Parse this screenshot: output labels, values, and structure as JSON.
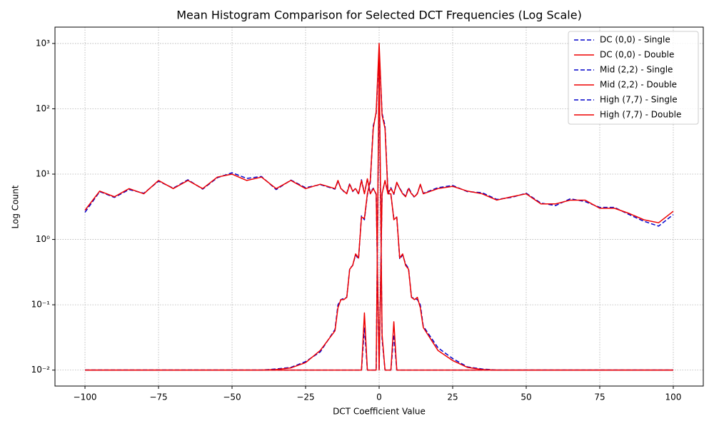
{
  "chart_data": {
    "type": "line",
    "title": "Mean Histogram Comparison for Selected DCT Frequencies (Log Scale)",
    "x_label": "DCT Coefficient Value",
    "y_label": "Log Count",
    "y_scale": "log",
    "grid": true,
    "legend": "upper right",
    "x": [
      -100,
      -95,
      -90,
      -85,
      -80,
      -75,
      -70,
      -65,
      -60,
      -55,
      -50,
      -45,
      -40,
      -35,
      -30,
      -25,
      -20,
      -15,
      -14,
      -13,
      -12,
      -11,
      -10,
      -9,
      -8,
      -7,
      -6,
      -5,
      -4,
      -3,
      -2,
      -1,
      0,
      1,
      2,
      3,
      4,
      5,
      6,
      7,
      8,
      9,
      10,
      11,
      12,
      13,
      14,
      15,
      20,
      25,
      30,
      35,
      40,
      45,
      50,
      55,
      60,
      65,
      70,
      75,
      80,
      85,
      90,
      95,
      100
    ],
    "xlim": [
      -110.2,
      110.2
    ],
    "xticks": [
      {
        "value": -100,
        "label": "−100"
      },
      {
        "value": -75,
        "label": "−75"
      },
      {
        "value": -50,
        "label": "−50"
      },
      {
        "value": -25,
        "label": "−25"
      },
      0,
      25,
      50,
      75,
      100
    ],
    "ylim": [
      0.0057,
      1780
    ],
    "yticks": [
      {
        "value": 0.01,
        "label": "10⁻²"
      },
      {
        "value": 0.1,
        "label": "10⁻¹"
      },
      {
        "value": 1,
        "label": "10⁰"
      },
      {
        "value": 10,
        "label": "10¹"
      },
      {
        "value": 100,
        "label": "10²"
      },
      {
        "value": 1000,
        "label": "10³"
      }
    ],
    "series": [
      {
        "name": "DC (0,0) - Single",
        "color": "#0000cc",
        "linestyle": "dashed",
        "values": [
          2.6,
          5.4,
          4.4,
          5.8,
          5.1,
          7.8,
          6.1,
          8.2,
          5.9,
          8.8,
          10.5,
          8.6,
          9.2,
          5.8,
          8.1,
          6.2,
          6.9,
          5.9,
          7.8,
          6.1,
          5.4,
          5.1,
          7.2,
          5.4,
          6.1,
          4.9,
          8.2,
          5.1,
          8.3,
          5.2,
          6.1,
          4.9,
          0.01,
          5.1,
          7.8,
          5.2,
          6.2,
          4.9,
          7.3,
          6.1,
          5.1,
          4.6,
          6.2,
          5.1,
          4.4,
          5.1,
          6.9,
          5.1,
          6.2,
          6.7,
          5.4,
          5.2,
          4.1,
          4.4,
          5.1,
          3.6,
          3.3,
          4.2,
          3.8,
          3.1,
          3.1,
          2.4,
          1.9,
          1.6,
          2.4
        ]
      },
      {
        "name": "DC (0,0) - Double",
        "color": "#ee0000",
        "linestyle": "solid",
        "values": [
          2.8,
          5.5,
          4.5,
          6,
          5,
          8,
          6,
          8,
          6,
          9,
          10,
          8,
          9,
          6,
          8,
          6,
          7,
          6,
          8,
          6,
          5.5,
          5,
          7,
          5.5,
          6,
          5,
          8,
          5,
          8.5,
          5,
          6,
          5,
          0.01,
          5,
          8,
          5,
          6,
          5,
          7.5,
          6,
          5,
          4.5,
          6,
          5,
          4.5,
          5,
          7,
          5,
          6,
          6.5,
          5.5,
          5,
          4,
          4.5,
          5,
          3.5,
          3.5,
          4,
          4,
          3,
          3,
          2.5,
          2,
          1.8,
          2.7
        ]
      },
      {
        "name": "Mid (2,2) - Single",
        "color": "#0000cc",
        "linestyle": "dashed",
        "values": [
          0.01,
          0.01,
          0.01,
          0.01,
          0.01,
          0.01,
          0.01,
          0.01,
          0.01,
          0.01,
          0.01,
          0.01,
          0.01,
          0.0104,
          0.011,
          0.0135,
          0.019,
          0.042,
          0.1,
          0.12,
          0.125,
          0.13,
          0.36,
          0.4,
          0.58,
          0.5,
          2.3,
          2,
          4.8,
          7.5,
          55,
          85,
          800,
          85,
          55,
          5.2,
          4.8,
          2.1,
          2.2,
          0.5,
          0.58,
          0.42,
          0.36,
          0.13,
          0.125,
          0.12,
          0.1,
          0.047,
          0.022,
          0.015,
          0.0112,
          0.0104,
          0.01,
          0.01,
          0.01,
          0.01,
          0.01,
          0.01,
          0.01,
          0.01,
          0.01,
          0.01,
          0.01,
          0.01,
          0.01
        ]
      },
      {
        "name": "Mid (2,2) - Double",
        "color": "#ee0000",
        "linestyle": "solid",
        "values": [
          0.01,
          0.01,
          0.01,
          0.01,
          0.01,
          0.01,
          0.01,
          0.01,
          0.01,
          0.01,
          0.01,
          0.01,
          0.01,
          0.0102,
          0.0108,
          0.013,
          0.02,
          0.04,
          0.09,
          0.12,
          0.12,
          0.13,
          0.35,
          0.4,
          0.6,
          0.52,
          2.2,
          2.1,
          5,
          8,
          50,
          90,
          1000,
          80,
          50,
          5,
          5,
          2,
          2.2,
          0.52,
          0.6,
          0.4,
          0.35,
          0.13,
          0.12,
          0.13,
          0.09,
          0.045,
          0.02,
          0.014,
          0.011,
          0.0102,
          0.01,
          0.01,
          0.01,
          0.01,
          0.01,
          0.01,
          0.01,
          0.01,
          0.01,
          0.01,
          0.01,
          0.01,
          0.01
        ]
      },
      {
        "name": "High (7,7) - Single",
        "color": "#0000cc",
        "linestyle": "dashed",
        "values": [
          0.01,
          0.01,
          0.01,
          0.01,
          0.01,
          0.01,
          0.01,
          0.01,
          0.01,
          0.01,
          0.01,
          0.01,
          0.01,
          0.01,
          0.01,
          0.01,
          0.01,
          0.01,
          0.01,
          0.01,
          0.01,
          0.01,
          0.01,
          0.01,
          0.01,
          0.01,
          0.01,
          0.045,
          0.01,
          0.01,
          0.01,
          0.01,
          400,
          0.03,
          0.01,
          0.01,
          0.01,
          0.035,
          0.01,
          0.01,
          0.01,
          0.01,
          0.01,
          0.01,
          0.01,
          0.01,
          0.01,
          0.01,
          0.01,
          0.01,
          0.01,
          0.01,
          0.01,
          0.01,
          0.01,
          0.01,
          0.01,
          0.01,
          0.01,
          0.01,
          0.01,
          0.01,
          0.01,
          0.01,
          0.01
        ]
      },
      {
        "name": "High (7,7) - Double",
        "color": "#ee0000",
        "linestyle": "solid",
        "values": [
          0.01,
          0.01,
          0.01,
          0.01,
          0.01,
          0.01,
          0.01,
          0.01,
          0.01,
          0.01,
          0.01,
          0.01,
          0.01,
          0.01,
          0.01,
          0.01,
          0.01,
          0.01,
          0.01,
          0.01,
          0.01,
          0.01,
          0.01,
          0.01,
          0.01,
          0.01,
          0.01,
          0.075,
          0.01,
          0.01,
          0.01,
          0.01,
          600,
          0.035,
          0.01,
          0.01,
          0.01,
          0.055,
          0.01,
          0.01,
          0.01,
          0.01,
          0.01,
          0.01,
          0.01,
          0.01,
          0.01,
          0.01,
          0.01,
          0.01,
          0.01,
          0.01,
          0.01,
          0.01,
          0.01,
          0.01,
          0.01,
          0.01,
          0.01,
          0.01,
          0.01,
          0.01,
          0.01,
          0.01,
          0.01
        ]
      }
    ]
  }
}
